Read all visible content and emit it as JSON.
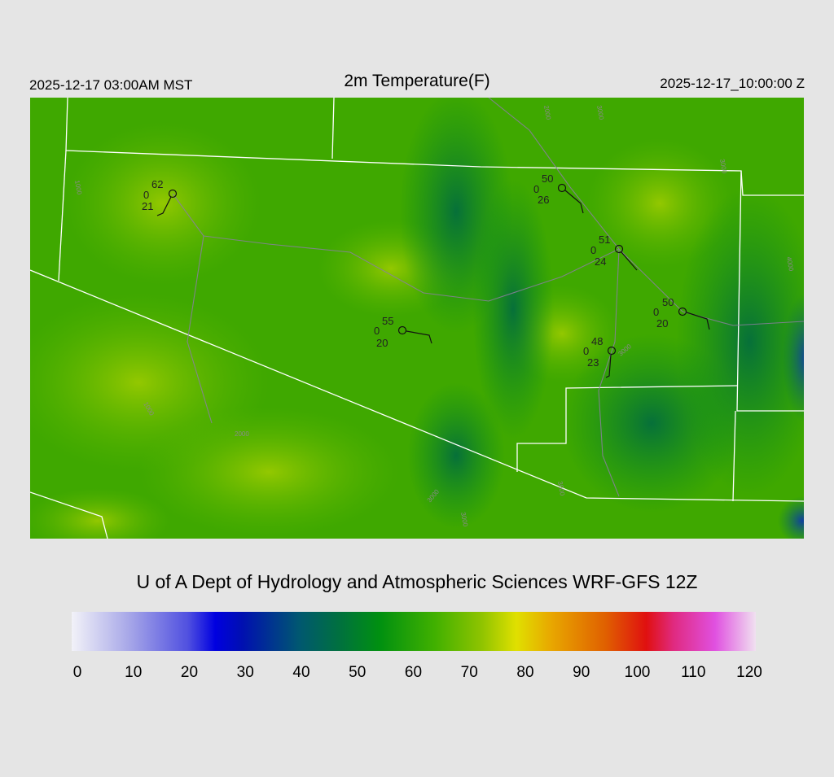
{
  "header": {
    "left": "2025-12-17 03:00AM MST",
    "title": "2m Temperature(F)",
    "right": "2025-12-17_10:00:00 Z"
  },
  "footer": {
    "credit": "U of A Dept of Hydrology and Atmospheric Sciences WRF-GFS 12Z"
  },
  "colorbar": {
    "range": [
      0,
      120
    ],
    "ticks": [
      0,
      10,
      20,
      30,
      40,
      50,
      60,
      70,
      80,
      90,
      100,
      110,
      120
    ]
  },
  "stations": [
    {
      "temp": "62",
      "wind": "0",
      "dew": "21"
    },
    {
      "temp": "50",
      "wind": "0",
      "dew": "26"
    },
    {
      "temp": "51",
      "wind": "0",
      "dew": "24"
    },
    {
      "temp": "50",
      "wind": "0",
      "dew": "20"
    },
    {
      "temp": "55",
      "wind": "0",
      "dew": "20"
    },
    {
      "temp": "48",
      "wind": "0",
      "dew": "23"
    }
  ],
  "contour_labels": [
    "1000",
    "2000",
    "3000",
    "3000",
    "4000",
    "3000",
    "1000",
    "2000",
    "3000",
    "3000",
    "3000"
  ]
}
